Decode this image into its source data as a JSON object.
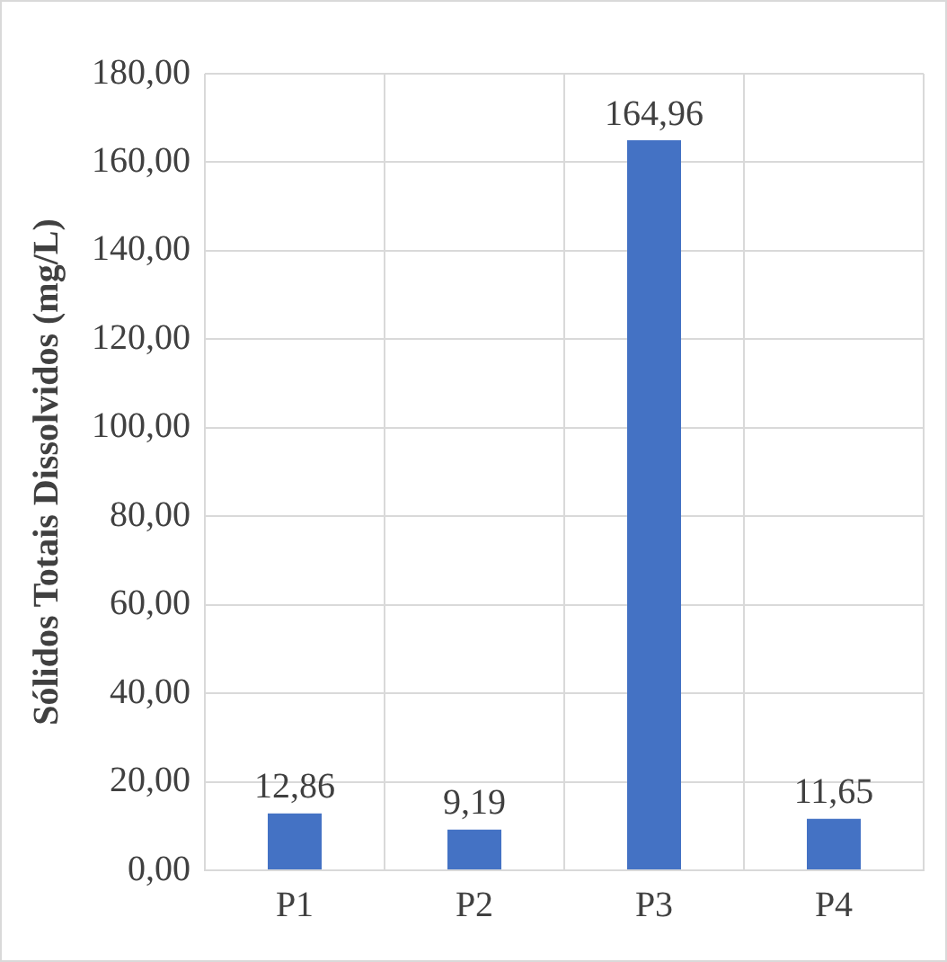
{
  "chart_data": {
    "type": "bar",
    "ylabel": "Sólidos Totais Dissolvidos (mg/L)",
    "categories": [
      "P1",
      "P2",
      "P3",
      "P4"
    ],
    "values": [
      12.86,
      9.19,
      164.96,
      11.65
    ],
    "value_labels": [
      "12,86",
      "9,19",
      "164,96",
      "11,65"
    ],
    "color": "#4472c4",
    "ylim": [
      0,
      180
    ],
    "yticks": [
      {
        "value": 0,
        "label": "0,00"
      },
      {
        "value": 20,
        "label": "20,00"
      },
      {
        "value": 40,
        "label": "40,00"
      },
      {
        "value": 60,
        "label": "60,00"
      },
      {
        "value": 80,
        "label": "80,00"
      },
      {
        "value": 100,
        "label": "100,00"
      },
      {
        "value": 120,
        "label": "120,00"
      },
      {
        "value": 140,
        "label": "140,00"
      },
      {
        "value": 160,
        "label": "160,00"
      },
      {
        "value": 180,
        "label": "180,00"
      }
    ],
    "grid": true,
    "legend": false
  }
}
